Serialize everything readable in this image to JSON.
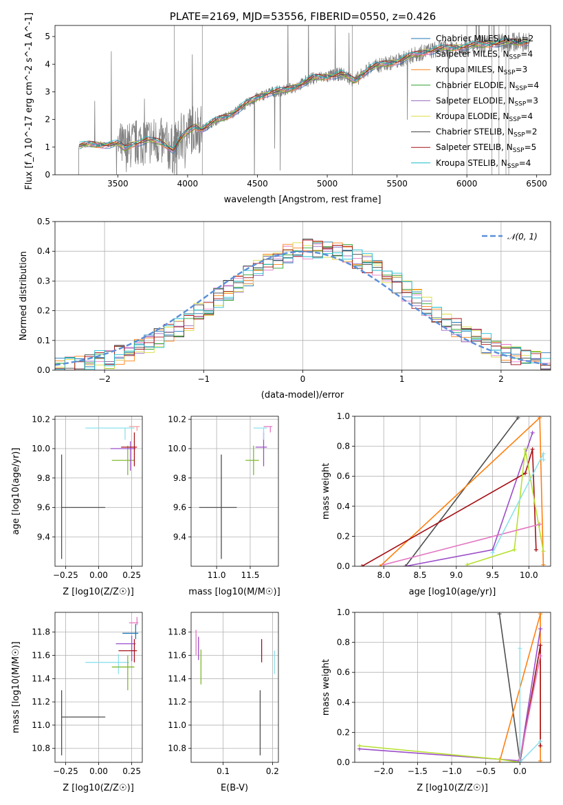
{
  "chart_data": [
    {
      "id": "spectrum",
      "type": "line",
      "title": "PLATE=2169, MJD=53556, FIBERID=0550, z=0.426",
      "xlabel": "wavelength [Angstrom, rest frame]",
      "ylabel": "Flux [f_λ 10^-17 erg cm^-2 s^-1 A^-1]",
      "xlim": [
        3050,
        6600
      ],
      "ylim": [
        0,
        5.4
      ],
      "xticks": [
        3500,
        4000,
        4500,
        5000,
        5500,
        6000,
        6500
      ],
      "yticks": [
        0,
        1,
        2,
        3,
        4,
        5
      ],
      "grid": false,
      "legend_position": "top-right",
      "data_color": "#7f7f7f",
      "continuum": [
        [
          3220,
          1.05
        ],
        [
          3300,
          1.1
        ],
        [
          3400,
          1.08
        ],
        [
          3500,
          1.12
        ],
        [
          3550,
          0.95
        ],
        [
          3600,
          1.1
        ],
        [
          3700,
          1.25
        ],
        [
          3800,
          1.2
        ],
        [
          3850,
          1.05
        ],
        [
          3900,
          0.9
        ],
        [
          3950,
          1.3
        ],
        [
          4000,
          1.55
        ],
        [
          4050,
          1.75
        ],
        [
          4100,
          1.65
        ],
        [
          4200,
          1.95
        ],
        [
          4300,
          2.15
        ],
        [
          4400,
          2.5
        ],
        [
          4500,
          2.8
        ],
        [
          4600,
          3.0
        ],
        [
          4700,
          3.05
        ],
        [
          4800,
          3.25
        ],
        [
          4900,
          3.5
        ],
        [
          5000,
          3.55
        ],
        [
          5100,
          3.65
        ],
        [
          5200,
          3.4
        ],
        [
          5300,
          3.85
        ],
        [
          5400,
          4.0
        ],
        [
          5500,
          4.1
        ],
        [
          5600,
          4.3
        ],
        [
          5700,
          4.45
        ],
        [
          5800,
          4.55
        ],
        [
          5900,
          4.6
        ],
        [
          6000,
          4.65
        ],
        [
          6100,
          4.7
        ],
        [
          6200,
          4.75
        ],
        [
          6300,
          4.8
        ],
        [
          6450,
          4.8
        ]
      ],
      "series": [
        {
          "name": "Chabrier MILES, N_SSP=2",
          "color": "#1f77b4"
        },
        {
          "name": "Salpeter MILES, N_SSP=4",
          "color": "#e377c2"
        },
        {
          "name": "Kroupa MILES, N_SSP=3",
          "color": "#ff7f0e"
        },
        {
          "name": "Chabrier ELODIE, N_SSP=4",
          "color": "#2ca02c"
        },
        {
          "name": "Salpeter ELODIE, N_SSP=3",
          "color": "#9467bd"
        },
        {
          "name": "Kroupa ELODIE, N_SSP=4",
          "color": "#dbdb3d"
        },
        {
          "name": "Chabrier STELIB, N_SSP=2",
          "color": "#3f3f3f"
        },
        {
          "name": "Salpeter STELIB, N_SSP=5",
          "color": "#a50f15"
        },
        {
          "name": "Kroupa STELIB, N_SSP=4",
          "color": "#17becf"
        }
      ]
    },
    {
      "id": "residuals",
      "type": "line",
      "title": "",
      "xlabel": "(data-model)/error",
      "ylabel": "Normed distribution",
      "xlim": [
        -2.5,
        2.5
      ],
      "ylim": [
        0,
        0.5
      ],
      "xticks": [
        -2,
        -1,
        0,
        1,
        2
      ],
      "yticks": [
        0.0,
        0.1,
        0.2,
        0.3,
        0.4,
        0.5
      ],
      "grid": true,
      "legend_position": "top-right",
      "gaussian": {
        "name": "𝒩(0, 1)",
        "color": "#5b8fd9",
        "mean": 0,
        "sigma": 1
      }
    },
    {
      "id": "age-vs-Z",
      "type": "scatter",
      "xlabel": "Z [log10(Z/Z☉)]",
      "ylabel": "age  [log10(age/yr)]",
      "xlim": [
        -0.33,
        0.33
      ],
      "ylim": [
        9.2,
        10.22
      ],
      "xticks": [
        -0.25,
        0.0,
        0.25
      ],
      "yticks": [
        9.4,
        9.6,
        9.8,
        10.0,
        10.2
      ],
      "grid": true,
      "points": [
        {
          "x": -0.28,
          "y": 9.6,
          "xerr": [
            0.0,
            0.33
          ],
          "yerr": [
            0.35,
            0.36
          ],
          "color": "#4d4d4d"
        },
        {
          "x": 0.2,
          "y": 10.14,
          "xerr": [
            0.3,
            0.07
          ],
          "yerr": [
            0.08,
            0.0
          ],
          "color": "#8be0ec"
        },
        {
          "x": 0.22,
          "y": 9.92,
          "xerr": [
            0.12,
            0.05
          ],
          "yerr": [
            0.1,
            0.1
          ],
          "color": "#7fb82c"
        },
        {
          "x": 0.24,
          "y": 10.0,
          "xerr": [
            0.15,
            0.04
          ],
          "yerr": [
            0.15,
            0.05
          ],
          "color": "#9b4dc9"
        },
        {
          "x": 0.27,
          "y": 10.01,
          "xerr": [
            0.1,
            0.02
          ],
          "yerr": [
            0.13,
            0.1
          ],
          "color": "#a50f15"
        },
        {
          "x": 0.29,
          "y": 10.15,
          "xerr": [
            0.06,
            0.02
          ],
          "yerr": [
            0.03,
            0.0
          ],
          "color": "#f0a0a0"
        }
      ]
    },
    {
      "id": "age-vs-mass",
      "type": "scatter",
      "xlabel": "mass [log10(M/M☉)]",
      "ylabel": "",
      "xlim": [
        10.62,
        11.92
      ],
      "ylim": [
        9.2,
        10.22
      ],
      "xticks": [
        11.0,
        11.5
      ],
      "yticks": [
        9.4,
        9.6,
        9.8,
        10.0,
        10.2
      ],
      "grid": true,
      "points": [
        {
          "x": 11.07,
          "y": 9.6,
          "xerr": [
            0.33,
            0.23
          ],
          "yerr": [
            0.35,
            0.36
          ],
          "color": "#4d4d4d"
        },
        {
          "x": 11.55,
          "y": 9.92,
          "xerr": [
            0.12,
            0.08
          ],
          "yerr": [
            0.1,
            0.1
          ],
          "color": "#7fb82c"
        },
        {
          "x": 11.7,
          "y": 10.01,
          "xerr": [
            0.12,
            0.05
          ],
          "yerr": [
            0.13,
            0.1
          ],
          "color": "#9b4dc9"
        },
        {
          "x": 11.7,
          "y": 10.14,
          "xerr": [
            0.15,
            0.05
          ],
          "yerr": [
            0.08,
            0.0
          ],
          "color": "#8be0ec"
        },
        {
          "x": 11.8,
          "y": 10.15,
          "xerr": [
            0.1,
            0.03
          ],
          "yerr": [
            0.04,
            0.0
          ],
          "color": "#e377c2"
        }
      ]
    },
    {
      "id": "weight-vs-age",
      "type": "line",
      "xlabel": "age  [log10(age/yr)]",
      "ylabel": "mass weight",
      "xlim": [
        7.6,
        10.3
      ],
      "ylim": [
        0,
        1
      ],
      "xticks": [
        8.0,
        8.5,
        9.0,
        9.5,
        10.0
      ],
      "yticks": [
        0.0,
        0.2,
        0.4,
        0.6,
        0.8,
        1.0
      ],
      "grid": true,
      "series": [
        {
          "color": "#4d4d4d",
          "points": [
            [
              8.3,
              0.0
            ],
            [
              9.85,
              0.99
            ]
          ]
        },
        {
          "color": "#ff7f0e",
          "points": [
            [
              7.95,
              0.0
            ],
            [
              10.15,
              0.99
            ],
            [
              10.2,
              0.01
            ]
          ]
        },
        {
          "color": "#9b4dc9",
          "points": [
            [
              8.3,
              0.0
            ],
            [
              9.5,
              0.11
            ],
            [
              10.05,
              0.89
            ]
          ]
        },
        {
          "color": "#a50f15",
          "points": [
            [
              7.7,
              0.0
            ],
            [
              9.95,
              0.62
            ],
            [
              10.05,
              0.78
            ],
            [
              10.1,
              0.11
            ]
          ]
        },
        {
          "color": "#b5e02c",
          "points": [
            [
              9.15,
              0.01
            ],
            [
              9.8,
              0.11
            ],
            [
              9.95,
              0.78
            ],
            [
              10.2,
              0.1
            ]
          ]
        },
        {
          "color": "#e377c2",
          "points": [
            [
              8.0,
              0.01
            ],
            [
              10.15,
              0.28
            ]
          ]
        },
        {
          "color": "#8be0ec",
          "points": [
            [
              9.5,
              0.09
            ],
            [
              10.2,
              0.75
            ],
            [
              10.2,
              0.71
            ]
          ]
        }
      ]
    },
    {
      "id": "mass-vs-Z",
      "type": "scatter",
      "xlabel": "Z [log10(Z/Z☉)]",
      "ylabel": "mass [log10(M/M☉)]",
      "xlim": [
        -0.33,
        0.33
      ],
      "ylim": [
        10.68,
        11.97
      ],
      "xticks": [
        -0.25,
        0.0,
        0.25
      ],
      "yticks": [
        10.8,
        11.0,
        11.2,
        11.4,
        11.6,
        11.8
      ],
      "grid": true,
      "points": [
        {
          "x": -0.28,
          "y": 11.07,
          "xerr": [
            0.0,
            0.33
          ],
          "yerr": [
            0.33,
            0.23
          ],
          "color": "#4d4d4d"
        },
        {
          "x": 0.15,
          "y": 11.54,
          "xerr": [
            0.25,
            0.08
          ],
          "yerr": [
            0.1,
            0.07
          ],
          "color": "#8be0ec"
        },
        {
          "x": 0.22,
          "y": 11.5,
          "xerr": [
            0.12,
            0.05
          ],
          "yerr": [
            0.2,
            0.1
          ],
          "color": "#7fb82c"
        },
        {
          "x": 0.25,
          "y": 11.7,
          "xerr": [
            0.12,
            0.03
          ],
          "yerr": [
            0.15,
            0.07
          ],
          "color": "#9b4dc9"
        },
        {
          "x": 0.27,
          "y": 11.64,
          "xerr": [
            0.12,
            0.02
          ],
          "yerr": [
            0.1,
            0.1
          ],
          "color": "#a50f15"
        },
        {
          "x": 0.28,
          "y": 11.79,
          "xerr": [
            0.1,
            0.02
          ],
          "yerr": [
            0.05,
            0.08
          ],
          "color": "#1f77b4"
        },
        {
          "x": 0.29,
          "y": 11.88,
          "xerr": [
            0.06,
            0.01
          ],
          "yerr": [
            0.02,
            0.05
          ],
          "color": "#e377c2"
        }
      ]
    },
    {
      "id": "mass-vs-EBV",
      "type": "scatter",
      "xlabel": "E(B-V)",
      "ylabel": "",
      "xlim": [
        0.035,
        0.212
      ],
      "ylim": [
        10.68,
        11.97
      ],
      "xticks": [
        0.1,
        0.2
      ],
      "yticks": [
        10.8,
        11.0,
        11.2,
        11.4,
        11.6,
        11.8
      ],
      "grid": true,
      "points": [
        {
          "x": 0.045,
          "y": 11.75,
          "yerr": [
            0.15,
            0.07
          ],
          "color": "#e377c2"
        },
        {
          "x": 0.05,
          "y": 11.66,
          "yerr": [
            0.1,
            0.1
          ],
          "color": "#9b4dc9"
        },
        {
          "x": 0.055,
          "y": 11.55,
          "yerr": [
            0.2,
            0.1
          ],
          "color": "#7fb82c"
        },
        {
          "x": 0.175,
          "y": 11.07,
          "yerr": [
            0.33,
            0.23
          ],
          "color": "#4d4d4d"
        },
        {
          "x": 0.178,
          "y": 11.64,
          "yerr": [
            0.1,
            0.1
          ],
          "color": "#a50f15"
        },
        {
          "x": 0.204,
          "y": 11.54,
          "yerr": [
            0.1,
            0.1
          ],
          "color": "#8be0ec"
        }
      ]
    },
    {
      "id": "weight-vs-Z",
      "type": "line",
      "xlabel": "Z [log10(Z/Z☉)]",
      "ylabel": "mass weight",
      "xlim": [
        -2.42,
        0.45
      ],
      "ylim": [
        0,
        1
      ],
      "xticks": [
        -2.0,
        -1.5,
        -1.0,
        -0.5,
        0.0
      ],
      "yticks": [
        0.0,
        0.2,
        0.4,
        0.6,
        0.8,
        1.0
      ],
      "grid": true,
      "series": [
        {
          "color": "#4d4d4d",
          "points": [
            [
              -0.3,
              0.99
            ],
            [
              0.0,
              0.01
            ]
          ]
        },
        {
          "color": "#ff7f0e",
          "points": [
            [
              -0.3,
              0.0
            ],
            [
              0.3,
              0.99
            ],
            [
              0.3,
              0.01
            ]
          ]
        },
        {
          "color": "#9b4dc9",
          "points": [
            [
              -2.35,
              0.09
            ],
            [
              0.0,
              0.01
            ],
            [
              0.3,
              0.89
            ]
          ]
        },
        {
          "color": "#b5e02c",
          "points": [
            [
              -2.35,
              0.11
            ],
            [
              -0.3,
              0.02
            ],
            [
              0.0,
              0.0
            ],
            [
              0.3,
              0.78
            ]
          ]
        },
        {
          "color": "#a50f15",
          "points": [
            [
              0.0,
              0.0
            ],
            [
              0.3,
              0.78
            ],
            [
              0.3,
              0.11
            ]
          ]
        },
        {
          "color": "#e377c2",
          "points": [
            [
              0.0,
              0.02
            ],
            [
              0.3,
              0.71
            ]
          ]
        },
        {
          "color": "#8be0ec",
          "points": [
            [
              0.0,
              0.76
            ],
            [
              0.0,
              0.0
            ],
            [
              0.3,
              0.14
            ]
          ]
        }
      ]
    }
  ]
}
